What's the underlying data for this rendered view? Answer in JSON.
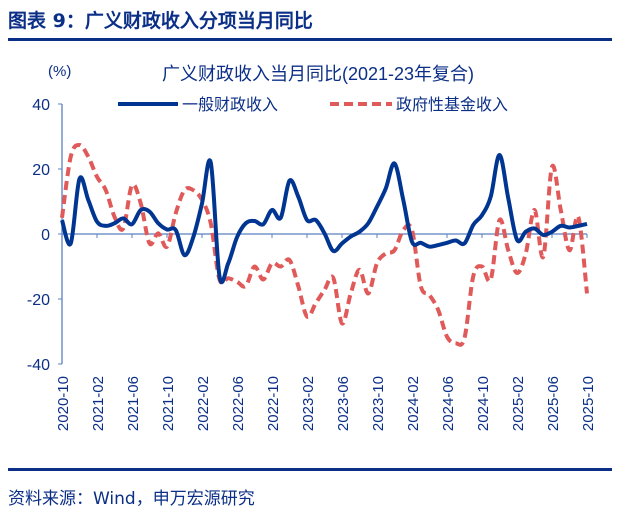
{
  "header": {
    "title": "图表 9：广义财政收入分项当月同比"
  },
  "footer": {
    "source": "资料来源：Wind，申万宏源研究"
  },
  "colors": {
    "accent": "#0b2f86",
    "blue_series": "#003592",
    "red_series": "#e05a5a",
    "axis": "#5a80c0"
  },
  "chart_data": {
    "type": "line",
    "title": "广义财政收入当月同比(2021-23年复合)",
    "ylabel": "(%)",
    "ylim": [
      -40,
      40
    ],
    "yticks": [
      40,
      20,
      0,
      -20,
      -40
    ],
    "xtick_labels": [
      "2020-10",
      "2021-02",
      "2021-06",
      "2021-10",
      "2022-02",
      "2022-06",
      "2022-10",
      "2023-02",
      "2023-06",
      "2023-10",
      "2024-02",
      "2024-06",
      "2024-10",
      "2025-02",
      "2025-06",
      "2025-10"
    ],
    "x_start": "2020-10",
    "x_end": "2025-10",
    "legend_placement": "top",
    "grid": false,
    "series": [
      {
        "name": "一般财政收入",
        "style": "solid",
        "values": [
          4.3,
          -2.9,
          17,
          10.5,
          3.8,
          2.5,
          3.3,
          4.8,
          3,
          7.4,
          6.9,
          3.3,
          1.4,
          1.2,
          -6.5,
          -1,
          9.4,
          22,
          -13,
          -9,
          -1,
          3.3,
          4,
          3,
          7.4,
          5,
          16.4,
          11.5,
          4.3,
          4.3,
          0.2,
          -5.2,
          -2.9,
          -0.8,
          0.7,
          3.3,
          8.4,
          14,
          21.7,
          10.5,
          -2.4,
          -2.7,
          -3.9,
          -3.4,
          -2.7,
          -2,
          -2.9,
          2.8,
          5.8,
          11.5,
          24.3,
          11,
          -1.8,
          0.7,
          1.7,
          -0.3,
          0.7,
          2.5,
          2,
          2.5,
          3.1
        ]
      },
      {
        "name": "政府性基金收入",
        "style": "dashed",
        "values": [
          5,
          23.8,
          27.4,
          23.8,
          17.6,
          13.5,
          5.3,
          1.7,
          15,
          9.4,
          -2.9,
          0.2,
          -3.9,
          6.4,
          13.5,
          13.5,
          10.5,
          3.3,
          -14,
          -13.6,
          -14.7,
          -16,
          -10,
          -14,
          -9,
          -10,
          -8,
          -16,
          -25.4,
          -21.3,
          -17.2,
          -13.5,
          -27.5,
          -18.3,
          -11,
          -18.3,
          -9,
          -6,
          -5,
          1.2,
          1.2,
          -16,
          -18.8,
          -23.4,
          -31.6,
          -33.6,
          -32,
          -13,
          -10,
          -14,
          4.3,
          -5,
          -12,
          -6,
          7.4,
          -7,
          20.7,
          7.4,
          -5,
          5.3,
          -18.3
        ]
      }
    ]
  }
}
